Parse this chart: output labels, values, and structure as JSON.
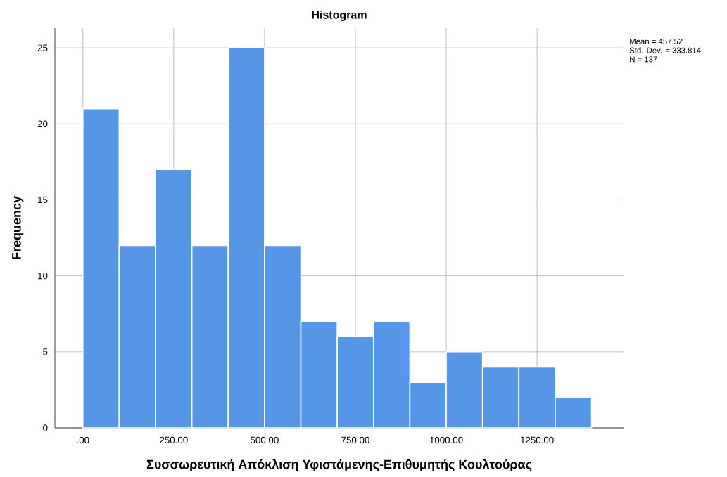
{
  "chart_data": {
    "type": "histogram",
    "title": "Histogram",
    "xlabel": "Συσσωρευτική Απόκλιση Υφιστάμενης-Επιθυμητής Κουλτούρας",
    "ylabel": "Frequency",
    "bins": [
      0,
      100,
      200,
      300,
      400,
      500,
      600,
      700,
      800,
      900,
      1000,
      1100,
      1200,
      1300,
      1400
    ],
    "values": [
      21,
      12,
      17,
      12,
      25,
      12,
      7,
      6,
      7,
      3,
      5,
      4,
      4,
      2
    ],
    "color": "#5596e6",
    "xlim": [
      -77,
      1488
    ],
    "ylim": [
      0,
      26.3
    ],
    "xticks": [
      {
        "value": 0,
        "label": ".00"
      },
      {
        "value": 250,
        "label": "250.00"
      },
      {
        "value": 500,
        "label": "500.00"
      },
      {
        "value": 750,
        "label": "750.00"
      },
      {
        "value": 1000,
        "label": "1000.00"
      },
      {
        "value": 1250,
        "label": "1250.00"
      }
    ],
    "yticks": [
      0,
      5,
      10,
      15,
      20,
      25
    ],
    "grid": true,
    "annotations": [
      "Mean = 457.52",
      "Std. Dev. = 333.814",
      "N = 137"
    ]
  }
}
